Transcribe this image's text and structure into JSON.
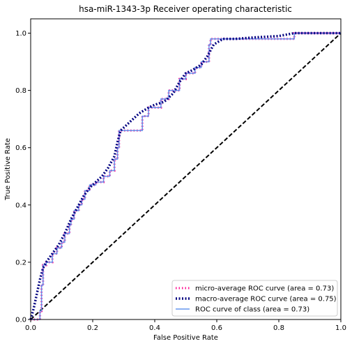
{
  "chart_data": {
    "type": "line",
    "title": "hsa-miR-1343-3p Receiver operating characteristic",
    "xlabel": "False Positive Rate",
    "ylabel": "True Positive Rate",
    "xlim": [
      0,
      1.0
    ],
    "ylim": [
      0,
      1.05
    ],
    "xticks": [
      0.0,
      0.2,
      0.4,
      0.6,
      0.8,
      1.0
    ],
    "xtick_labels": [
      "0.0",
      "0.2",
      "0.4",
      "0.6",
      "0.8",
      "1.0"
    ],
    "yticks": [
      0.0,
      0.2,
      0.4,
      0.6,
      0.8,
      1.0
    ],
    "ytick_labels": [
      "0.0",
      "0.2",
      "0.4",
      "0.6",
      "0.8",
      "1.0"
    ],
    "grid": false,
    "legend_position": "lower-right",
    "series": [
      {
        "name": "micro-average ROC curve (area = 0.73)",
        "color": "#ff1493",
        "style": "dotted",
        "x": [
          0,
          0.03,
          0.03,
          0.035,
          0.035,
          0.04,
          0.04,
          0.05,
          0.05,
          0.07,
          0.07,
          0.085,
          0.085,
          0.1,
          0.1,
          0.11,
          0.11,
          0.125,
          0.125,
          0.13,
          0.13,
          0.14,
          0.14,
          0.155,
          0.155,
          0.165,
          0.165,
          0.175,
          0.175,
          0.19,
          0.19,
          0.21,
          0.21,
          0.235,
          0.235,
          0.255,
          0.255,
          0.27,
          0.27,
          0.28,
          0.28,
          0.285,
          0.285,
          0.36,
          0.36,
          0.38,
          0.38,
          0.42,
          0.42,
          0.445,
          0.445,
          0.48,
          0.48,
          0.5,
          0.5,
          0.53,
          0.53,
          0.55,
          0.55,
          0.575,
          0.575,
          0.58,
          0.58,
          0.63,
          0.63,
          0.85,
          0.85,
          1.0,
          1.0
        ],
        "y": [
          0,
          0,
          0.03,
          0.03,
          0.12,
          0.12,
          0.19,
          0.19,
          0.2,
          0.2,
          0.23,
          0.23,
          0.25,
          0.25,
          0.27,
          0.27,
          0.3,
          0.3,
          0.33,
          0.33,
          0.35,
          0.35,
          0.38,
          0.38,
          0.4,
          0.4,
          0.42,
          0.42,
          0.45,
          0.45,
          0.47,
          0.47,
          0.48,
          0.48,
          0.5,
          0.5,
          0.52,
          0.52,
          0.56,
          0.56,
          0.6,
          0.6,
          0.66,
          0.66,
          0.71,
          0.71,
          0.74,
          0.74,
          0.77,
          0.77,
          0.8,
          0.8,
          0.84,
          0.84,
          0.86,
          0.86,
          0.88,
          0.88,
          0.9,
          0.9,
          0.96,
          0.96,
          0.98,
          0.98,
          0.98,
          0.98,
          1.0,
          1.0,
          1.0
        ]
      },
      {
        "name": "macro-average ROC curve (area = 0.75)",
        "color": "#000080",
        "style": "dotted",
        "x": [
          0,
          0.01,
          0.02,
          0.03,
          0.04,
          0.05,
          0.07,
          0.09,
          0.11,
          0.13,
          0.15,
          0.17,
          0.19,
          0.21,
          0.23,
          0.25,
          0.27,
          0.28,
          0.29,
          0.31,
          0.33,
          0.35,
          0.38,
          0.4,
          0.43,
          0.46,
          0.48,
          0.5,
          0.52,
          0.55,
          0.57,
          0.59,
          0.62,
          0.66,
          0.72,
          0.8,
          0.85,
          0.9,
          1.0
        ],
        "y": [
          0,
          0.04,
          0.09,
          0.14,
          0.18,
          0.2,
          0.23,
          0.26,
          0.3,
          0.35,
          0.39,
          0.43,
          0.46,
          0.48,
          0.5,
          0.53,
          0.57,
          0.62,
          0.66,
          0.68,
          0.7,
          0.72,
          0.74,
          0.75,
          0.76,
          0.79,
          0.83,
          0.86,
          0.87,
          0.89,
          0.92,
          0.96,
          0.98,
          0.98,
          0.985,
          0.99,
          1.0,
          1.0,
          1.0
        ]
      },
      {
        "name": "ROC curve of class (area = 0.73)",
        "color": "#6495ed",
        "style": "solid",
        "x": [
          0,
          0.03,
          0.03,
          0.035,
          0.035,
          0.04,
          0.04,
          0.05,
          0.05,
          0.07,
          0.07,
          0.085,
          0.085,
          0.1,
          0.1,
          0.11,
          0.11,
          0.125,
          0.125,
          0.13,
          0.13,
          0.14,
          0.14,
          0.155,
          0.155,
          0.165,
          0.165,
          0.175,
          0.175,
          0.19,
          0.19,
          0.21,
          0.21,
          0.235,
          0.235,
          0.255,
          0.255,
          0.27,
          0.27,
          0.28,
          0.28,
          0.285,
          0.285,
          0.36,
          0.36,
          0.38,
          0.38,
          0.42,
          0.42,
          0.445,
          0.445,
          0.48,
          0.48,
          0.5,
          0.5,
          0.53,
          0.53,
          0.55,
          0.55,
          0.575,
          0.575,
          0.58,
          0.58,
          0.63,
          0.63,
          0.85,
          0.85,
          1.0,
          1.0
        ],
        "y": [
          0,
          0,
          0.03,
          0.03,
          0.12,
          0.12,
          0.19,
          0.19,
          0.2,
          0.2,
          0.23,
          0.23,
          0.25,
          0.25,
          0.27,
          0.27,
          0.3,
          0.3,
          0.33,
          0.33,
          0.35,
          0.35,
          0.38,
          0.38,
          0.4,
          0.4,
          0.42,
          0.42,
          0.45,
          0.45,
          0.47,
          0.47,
          0.48,
          0.48,
          0.5,
          0.5,
          0.52,
          0.52,
          0.56,
          0.56,
          0.6,
          0.6,
          0.66,
          0.66,
          0.71,
          0.71,
          0.74,
          0.74,
          0.77,
          0.77,
          0.8,
          0.8,
          0.84,
          0.84,
          0.86,
          0.86,
          0.88,
          0.88,
          0.9,
          0.9,
          0.96,
          0.96,
          0.98,
          0.98,
          0.98,
          0.98,
          1.0,
          1.0,
          1.0
        ]
      },
      {
        "name": "",
        "color": "#000000",
        "style": "dashed",
        "x": [
          0,
          1
        ],
        "y": [
          0,
          1
        ]
      }
    ]
  }
}
